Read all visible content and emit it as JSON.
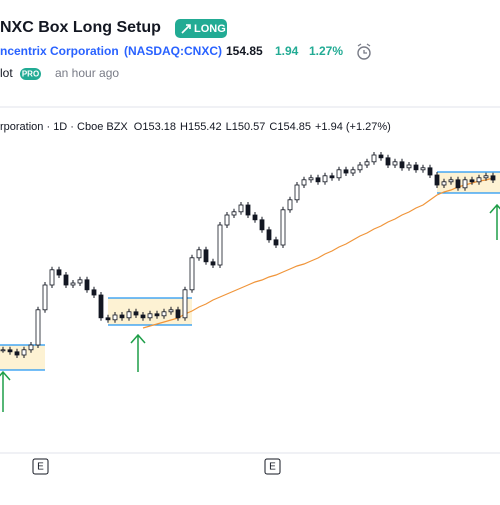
{
  "header": {
    "title": "NXC Box Long Setup",
    "badge": "LONG",
    "company": "ncentrix Corporation",
    "ticker": "(NASDAQ:CNXC)",
    "price": "154.85",
    "change": "1.94",
    "change_pct": "1.27%",
    "author": "lot",
    "author_badge": "PRO",
    "time": "an hour ago"
  },
  "legend": {
    "symbol": "rporation · 1D · Cboe BZX",
    "ohlc": [
      {
        "label": "O",
        "value": "153.18"
      },
      {
        "label": "H",
        "value": "155.42"
      },
      {
        "label": "L",
        "value": "150.57"
      },
      {
        "label": "C",
        "value": "154.85"
      }
    ],
    "change": "+1.94 (+1.27%)"
  },
  "events": [
    "E",
    "E"
  ],
  "chart_data": {
    "type": "candlestick",
    "ylim": [
      79.85,
      164.85
    ],
    "closes": [
      112.4,
      111.9,
      111.1,
      112.4,
      113.6,
      122.4,
      128.6,
      132.4,
      131.1,
      128.6,
      129.1,
      129.9,
      127.4,
      126.1,
      120.4,
      119.9,
      121.1,
      120.4,
      121.9,
      121.1,
      120.4,
      121.4,
      120.9,
      121.9,
      122.4,
      120.4,
      127.4,
      135.4,
      137.4,
      134.4,
      133.6,
      143.6,
      146.1,
      146.9,
      148.6,
      146.1,
      144.9,
      142.4,
      139.9,
      138.6,
      147.4,
      149.9,
      153.6,
      154.9,
      155.4,
      154.4,
      155.9,
      155.4,
      157.4,
      156.6,
      157.4,
      158.6,
      159.4,
      161.1,
      160.4,
      158.6,
      159.4,
      157.9,
      158.6,
      157.4,
      157.9,
      156.1,
      153.6,
      154.4,
      154.9,
      152.9,
      154.9,
      154.4,
      155.4,
      155.9,
      154.85
    ],
    "ma": [
      null,
      null,
      null,
      null,
      null,
      null,
      null,
      null,
      null,
      null,
      null,
      null,
      null,
      null,
      null,
      null,
      null,
      null,
      null,
      null,
      117.85,
      118.35,
      118.85,
      119.35,
      119.85,
      120.35,
      121.35,
      122.1,
      123.1,
      123.85,
      124.85,
      125.6,
      126.35,
      127.1,
      127.85,
      128.6,
      129.35,
      129.85,
      130.6,
      131.1,
      131.85,
      132.6,
      133.35,
      133.85,
      134.6,
      135.35,
      136.35,
      137.1,
      138.1,
      138.85,
      139.85,
      140.85,
      141.6,
      142.6,
      143.35,
      144.35,
      145.1,
      146.1,
      146.85,
      147.85,
      148.6,
      149.85,
      151.1,
      151.85,
      152.35,
      153.1,
      153.6,
      154.1,
      154.6,
      154.85,
      155.35
    ],
    "ma_color": "#f0953a",
    "boxes": [
      {
        "top": 113.6,
        "bottom": 107.35
      },
      {
        "top": 125.35,
        "bottom": 118.6
      },
      {
        "top": 156.85,
        "bottom": 151.6
      }
    ],
    "box_color": "#2196f3",
    "box_fill": "#fdf2d3"
  }
}
